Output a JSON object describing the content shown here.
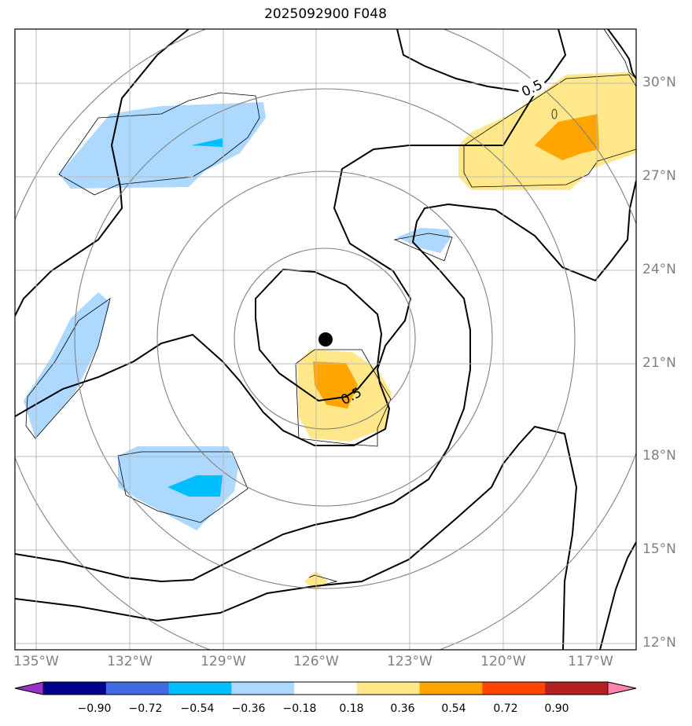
{
  "title": "2025092900 F048",
  "map": {
    "lon_labels": [
      "135°W",
      "132°W",
      "129°W",
      "126°W",
      "123°W",
      "120°W",
      "117°W"
    ],
    "lat_labels": [
      "30°N",
      "27°N",
      "24°N",
      "21°N",
      "18°N",
      "15°N",
      "12°N"
    ],
    "contour_labels": [
      "0.5",
      "0.5"
    ],
    "storm_center": {
      "lon": "125.8°W",
      "lat": "21.8°N"
    }
  },
  "colorbar": {
    "tick_labels": [
      "−0.90",
      "−0.72",
      "−0.54",
      "−0.36",
      "−0.18",
      "0.18",
      "0.36",
      "0.54",
      "0.72",
      "0.90"
    ],
    "colors": [
      "#9932cc",
      "#00008b",
      "#4169e1",
      "#00bfff",
      "#add8ff",
      "#ffffff",
      "#ffe78a",
      "#ffa500",
      "#ff4500",
      "#b22222",
      "#ff82ab"
    ]
  }
}
